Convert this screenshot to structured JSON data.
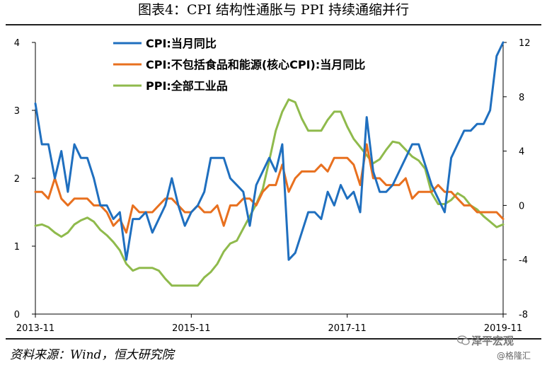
{
  "page": {
    "title": "图表4：CPI 结构性通胀与 PPI 持续通缩并行",
    "source": "资料来源：Wind，恒大研究院",
    "watermark_name": "泽平宏观",
    "watermark_sub": "@格隆汇"
  },
  "chart_data": {
    "type": "line",
    "x_tick_labels": [
      "2013-11",
      "2015-11",
      "2017-11",
      "2019-11"
    ],
    "x_range": [
      "2013-11",
      "2019-11"
    ],
    "left_axis": {
      "range": [
        0,
        4
      ],
      "ticks": [
        0,
        1,
        2,
        3,
        4
      ]
    },
    "right_axis": {
      "range": [
        -8,
        12
      ],
      "ticks": [
        -8,
        -4,
        0,
        4,
        8,
        12
      ]
    },
    "legend_position": "top-left",
    "grid": false,
    "series": [
      {
        "name": "CPI:当月同比",
        "axis": "left",
        "color": "#1f6fbf",
        "points": [
          [
            "2013-11",
            3.1
          ],
          [
            "2013-12",
            2.5
          ],
          [
            "2014-01",
            2.5
          ],
          [
            "2014-02",
            2.0
          ],
          [
            "2014-03",
            2.4
          ],
          [
            "2014-04",
            1.8
          ],
          [
            "2014-05",
            2.5
          ],
          [
            "2014-06",
            2.3
          ],
          [
            "2014-07",
            2.3
          ],
          [
            "2014-08",
            2.0
          ],
          [
            "2014-09",
            1.6
          ],
          [
            "2014-10",
            1.6
          ],
          [
            "2014-11",
            1.4
          ],
          [
            "2014-12",
            1.5
          ],
          [
            "2015-01",
            0.8
          ],
          [
            "2015-02",
            1.4
          ],
          [
            "2015-03",
            1.4
          ],
          [
            "2015-04",
            1.5
          ],
          [
            "2015-05",
            1.2
          ],
          [
            "2015-06",
            1.4
          ],
          [
            "2015-07",
            1.6
          ],
          [
            "2015-08",
            2.0
          ],
          [
            "2015-09",
            1.6
          ],
          [
            "2015-10",
            1.3
          ],
          [
            "2015-11",
            1.5
          ],
          [
            "2015-12",
            1.6
          ],
          [
            "2016-01",
            1.8
          ],
          [
            "2016-02",
            2.3
          ],
          [
            "2016-03",
            2.3
          ],
          [
            "2016-04",
            2.3
          ],
          [
            "2016-05",
            2.0
          ],
          [
            "2016-06",
            1.9
          ],
          [
            "2016-07",
            1.8
          ],
          [
            "2016-08",
            1.3
          ],
          [
            "2016-09",
            1.9
          ],
          [
            "2016-10",
            2.1
          ],
          [
            "2016-11",
            2.3
          ],
          [
            "2016-12",
            2.1
          ],
          [
            "2017-01",
            2.5
          ],
          [
            "2017-02",
            0.8
          ],
          [
            "2017-03",
            0.9
          ],
          [
            "2017-04",
            1.2
          ],
          [
            "2017-05",
            1.5
          ],
          [
            "2017-06",
            1.5
          ],
          [
            "2017-07",
            1.4
          ],
          [
            "2017-08",
            1.8
          ],
          [
            "2017-09",
            1.6
          ],
          [
            "2017-10",
            1.9
          ],
          [
            "2017-11",
            1.7
          ],
          [
            "2017-12",
            1.8
          ],
          [
            "2018-01",
            1.5
          ],
          [
            "2018-02",
            2.9
          ],
          [
            "2018-03",
            2.1
          ],
          [
            "2018-04",
            1.8
          ],
          [
            "2018-05",
            1.8
          ],
          [
            "2018-06",
            1.9
          ],
          [
            "2018-07",
            2.1
          ],
          [
            "2018-08",
            2.3
          ],
          [
            "2018-09",
            2.5
          ],
          [
            "2018-10",
            2.5
          ],
          [
            "2018-11",
            2.2
          ],
          [
            "2018-12",
            1.9
          ],
          [
            "2019-01",
            1.7
          ],
          [
            "2019-02",
            1.5
          ],
          [
            "2019-03",
            2.3
          ],
          [
            "2019-04",
            2.5
          ],
          [
            "2019-05",
            2.7
          ],
          [
            "2019-06",
            2.7
          ],
          [
            "2019-07",
            2.8
          ],
          [
            "2019-08",
            2.8
          ],
          [
            "2019-09",
            3.0
          ],
          [
            "2019-10",
            3.8
          ],
          [
            "2019-11",
            4.0
          ]
        ]
      },
      {
        "name": "CPI:不包括食品和能源(核心CPI):当月同比",
        "axis": "left",
        "color": "#e8701f",
        "points": [
          [
            "2013-11",
            1.8
          ],
          [
            "2013-12",
            1.8
          ],
          [
            "2014-01",
            1.7
          ],
          [
            "2014-02",
            2.0
          ],
          [
            "2014-03",
            1.7
          ],
          [
            "2014-04",
            1.6
          ],
          [
            "2014-05",
            1.7
          ],
          [
            "2014-06",
            1.7
          ],
          [
            "2014-07",
            1.7
          ],
          [
            "2014-08",
            1.6
          ],
          [
            "2014-09",
            1.6
          ],
          [
            "2014-10",
            1.5
          ],
          [
            "2014-11",
            1.3
          ],
          [
            "2014-12",
            1.4
          ],
          [
            "2015-01",
            1.2
          ],
          [
            "2015-02",
            1.6
          ],
          [
            "2015-03",
            1.5
          ],
          [
            "2015-04",
            1.5
          ],
          [
            "2015-05",
            1.5
          ],
          [
            "2015-06",
            1.6
          ],
          [
            "2015-07",
            1.7
          ],
          [
            "2015-08",
            1.7
          ],
          [
            "2015-09",
            1.6
          ],
          [
            "2015-10",
            1.5
          ],
          [
            "2015-11",
            1.5
          ],
          [
            "2015-12",
            1.6
          ],
          [
            "2016-01",
            1.5
          ],
          [
            "2016-02",
            1.5
          ],
          [
            "2016-03",
            1.6
          ],
          [
            "2016-04",
            1.3
          ],
          [
            "2016-05",
            1.6
          ],
          [
            "2016-06",
            1.6
          ],
          [
            "2016-07",
            1.7
          ],
          [
            "2016-08",
            1.7
          ],
          [
            "2016-09",
            1.6
          ],
          [
            "2016-10",
            1.8
          ],
          [
            "2016-11",
            1.9
          ],
          [
            "2016-12",
            1.9
          ],
          [
            "2017-01",
            2.2
          ],
          [
            "2017-02",
            1.8
          ],
          [
            "2017-03",
            2.0
          ],
          [
            "2017-04",
            2.1
          ],
          [
            "2017-05",
            2.1
          ],
          [
            "2017-06",
            2.1
          ],
          [
            "2017-07",
            2.2
          ],
          [
            "2017-08",
            2.1
          ],
          [
            "2017-09",
            2.3
          ],
          [
            "2017-10",
            2.3
          ],
          [
            "2017-11",
            2.3
          ],
          [
            "2017-12",
            2.2
          ],
          [
            "2018-01",
            1.9
          ],
          [
            "2018-02",
            2.5
          ],
          [
            "2018-03",
            2.0
          ],
          [
            "2018-04",
            2.0
          ],
          [
            "2018-05",
            1.9
          ],
          [
            "2018-06",
            1.9
          ],
          [
            "2018-07",
            1.9
          ],
          [
            "2018-08",
            2.0
          ],
          [
            "2018-09",
            1.7
          ],
          [
            "2018-10",
            1.8
          ],
          [
            "2018-11",
            1.8
          ],
          [
            "2018-12",
            1.8
          ],
          [
            "2019-01",
            1.9
          ],
          [
            "2019-02",
            1.8
          ],
          [
            "2019-03",
            1.8
          ],
          [
            "2019-04",
            1.7
          ],
          [
            "2019-05",
            1.6
          ],
          [
            "2019-06",
            1.6
          ],
          [
            "2019-07",
            1.5
          ],
          [
            "2019-08",
            1.5
          ],
          [
            "2019-09",
            1.5
          ],
          [
            "2019-10",
            1.5
          ],
          [
            "2019-11",
            1.4
          ]
        ]
      },
      {
        "name": "PPI:全部工业品",
        "axis": "right",
        "color": "#8fba4c",
        "points": [
          [
            "2013-11",
            -1.5
          ],
          [
            "2013-12",
            -1.4
          ],
          [
            "2014-01",
            -1.6
          ],
          [
            "2014-02",
            -2.0
          ],
          [
            "2014-03",
            -2.3
          ],
          [
            "2014-04",
            -2.0
          ],
          [
            "2014-05",
            -1.4
          ],
          [
            "2014-06",
            -1.1
          ],
          [
            "2014-07",
            -0.9
          ],
          [
            "2014-08",
            -1.2
          ],
          [
            "2014-09",
            -1.8
          ],
          [
            "2014-10",
            -2.2
          ],
          [
            "2014-11",
            -2.7
          ],
          [
            "2014-12",
            -3.3
          ],
          [
            "2015-01",
            -4.3
          ],
          [
            "2015-02",
            -4.8
          ],
          [
            "2015-03",
            -4.6
          ],
          [
            "2015-04",
            -4.6
          ],
          [
            "2015-05",
            -4.6
          ],
          [
            "2015-06",
            -4.8
          ],
          [
            "2015-07",
            -5.4
          ],
          [
            "2015-08",
            -5.9
          ],
          [
            "2015-09",
            -5.9
          ],
          [
            "2015-10",
            -5.9
          ],
          [
            "2015-11",
            -5.9
          ],
          [
            "2015-12",
            -5.9
          ],
          [
            "2016-01",
            -5.3
          ],
          [
            "2016-02",
            -4.9
          ],
          [
            "2016-03",
            -4.3
          ],
          [
            "2016-04",
            -3.4
          ],
          [
            "2016-05",
            -2.8
          ],
          [
            "2016-06",
            -2.6
          ],
          [
            "2016-07",
            -1.7
          ],
          [
            "2016-08",
            -0.8
          ],
          [
            "2016-09",
            0.1
          ],
          [
            "2016-10",
            1.2
          ],
          [
            "2016-11",
            3.3
          ],
          [
            "2016-12",
            5.5
          ],
          [
            "2017-01",
            6.9
          ],
          [
            "2017-02",
            7.8
          ],
          [
            "2017-03",
            7.6
          ],
          [
            "2017-04",
            6.4
          ],
          [
            "2017-05",
            5.5
          ],
          [
            "2017-06",
            5.5
          ],
          [
            "2017-07",
            5.5
          ],
          [
            "2017-08",
            6.3
          ],
          [
            "2017-09",
            6.9
          ],
          [
            "2017-10",
            6.9
          ],
          [
            "2017-11",
            5.8
          ],
          [
            "2017-12",
            4.9
          ],
          [
            "2018-01",
            4.3
          ],
          [
            "2018-02",
            3.7
          ],
          [
            "2018-03",
            3.1
          ],
          [
            "2018-04",
            3.4
          ],
          [
            "2018-05",
            4.1
          ],
          [
            "2018-06",
            4.7
          ],
          [
            "2018-07",
            4.6
          ],
          [
            "2018-08",
            4.1
          ],
          [
            "2018-09",
            3.6
          ],
          [
            "2018-10",
            3.3
          ],
          [
            "2018-11",
            2.7
          ],
          [
            "2018-12",
            0.9
          ],
          [
            "2019-01",
            0.1
          ],
          [
            "2019-02",
            0.1
          ],
          [
            "2019-03",
            0.4
          ],
          [
            "2019-04",
            0.9
          ],
          [
            "2019-05",
            0.6
          ],
          [
            "2019-06",
            0.0
          ],
          [
            "2019-07",
            -0.3
          ],
          [
            "2019-08",
            -0.8
          ],
          [
            "2019-09",
            -1.2
          ],
          [
            "2019-10",
            -1.6
          ],
          [
            "2019-11",
            -1.4
          ]
        ]
      }
    ]
  }
}
